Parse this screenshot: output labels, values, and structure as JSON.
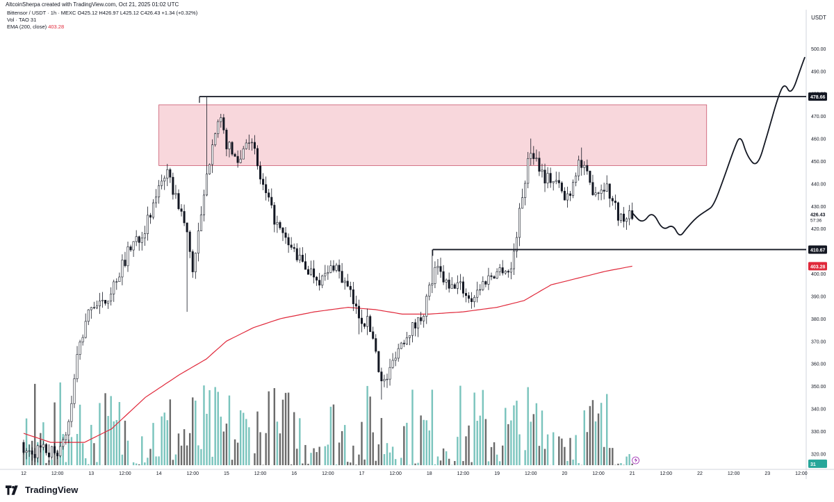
{
  "header": {
    "credit": "AltcoinSherpa created with TradingView.com, Oct 21, 2025 01:02 UTC"
  },
  "legend": {
    "line1": "Bittensor / USDT · 1h · MEXC  O425.12  H426.97  L425.12  C426.43  +1.34 (+0.32%)",
    "line2": "Vol · TAO  31",
    "line3_label": "EMA (200, close)",
    "line3_value": "403.28"
  },
  "axis": {
    "currency": "USDT"
  },
  "brand": {
    "name": "TradingView",
    "icon": "tradingview-logo-icon"
  },
  "colors": {
    "up": "#ffffff",
    "down": "#131722",
    "ema": "#e0283a",
    "vol_up": "#7ac4bd",
    "vol_down": "#6b6b6b",
    "zone_fill": "#f8d7dc",
    "zone_stroke": "#c9556a",
    "badge_dark": "#131722",
    "badge_red": "#e0283a",
    "badge_green": "#26a69a"
  },
  "chart_data": {
    "type": "candlestick",
    "symbol": "Bittensor / USDT",
    "interval": "1h",
    "exchange": "MEXC",
    "ylim": [
      313,
      508
    ],
    "y_ticks": [
      320,
      330,
      340,
      350,
      360,
      370,
      380,
      390,
      400,
      410,
      420,
      430,
      440,
      450,
      460,
      470,
      480,
      490,
      500
    ],
    "x_ticks": [
      {
        "label": "12",
        "day": 0
      },
      {
        "label": "12:00",
        "day": 0.5
      },
      {
        "label": "13",
        "day": 1
      },
      {
        "label": "12:00",
        "day": 1.5
      },
      {
        "label": "14",
        "day": 2
      },
      {
        "label": "12:00",
        "day": 2.5
      },
      {
        "label": "15",
        "day": 3
      },
      {
        "label": "12:00",
        "day": 3.5
      },
      {
        "label": "16",
        "day": 4
      },
      {
        "label": "12:00",
        "day": 4.5
      },
      {
        "label": "17",
        "day": 5
      },
      {
        "label": "12:00",
        "day": 5.5
      },
      {
        "label": "18",
        "day": 6
      },
      {
        "label": "12:00",
        "day": 6.5
      },
      {
        "label": "19",
        "day": 7
      },
      {
        "label": "12:00",
        "day": 7.5
      },
      {
        "label": "20",
        "day": 8
      },
      {
        "label": "12:00",
        "day": 8.5
      },
      {
        "label": "21",
        "day": 9
      },
      {
        "label": "12:00",
        "day": 9.5
      },
      {
        "label": "22",
        "day": 10
      },
      {
        "label": "12:00",
        "day": 10.5
      },
      {
        "label": "23",
        "day": 11
      },
      {
        "label": "12:00",
        "day": 11.5
      }
    ],
    "close_anchors": [
      [
        0.55,
        325
      ],
      [
        0.65,
        330
      ],
      [
        0.72,
        345
      ],
      [
        0.8,
        365
      ],
      [
        0.9,
        375
      ],
      [
        1.0,
        387
      ],
      [
        1.15,
        385
      ],
      [
        1.3,
        393
      ],
      [
        1.45,
        403
      ],
      [
        1.6,
        413
      ],
      [
        1.75,
        418
      ],
      [
        1.9,
        427
      ],
      [
        2.0,
        440
      ],
      [
        2.1,
        445
      ],
      [
        2.2,
        438
      ],
      [
        2.3,
        430
      ],
      [
        2.4,
        420
      ],
      [
        2.5,
        402
      ],
      [
        2.6,
        420
      ],
      [
        2.7,
        440
      ],
      [
        2.8,
        462
      ],
      [
        2.9,
        468
      ],
      [
        3.0,
        458
      ],
      [
        3.1,
        452
      ],
      [
        3.2,
        450
      ],
      [
        3.3,
        462
      ],
      [
        3.4,
        455
      ],
      [
        3.5,
        442
      ],
      [
        3.6,
        433
      ],
      [
        3.7,
        425
      ],
      [
        3.8,
        418
      ],
      [
        3.9,
        413
      ],
      [
        4.0,
        410
      ],
      [
        4.1,
        405
      ],
      [
        4.2,
        402
      ],
      [
        4.3,
        400
      ],
      [
        4.4,
        397
      ],
      [
        4.5,
        400
      ],
      [
        4.6,
        405
      ],
      [
        4.7,
        398
      ],
      [
        4.8,
        393
      ],
      [
        4.9,
        385
      ],
      [
        5.0,
        380
      ],
      [
        5.1,
        378
      ],
      [
        5.2,
        368
      ],
      [
        5.3,
        350
      ],
      [
        5.4,
        355
      ],
      [
        5.5,
        365
      ],
      [
        5.6,
        370
      ],
      [
        5.7,
        375
      ],
      [
        5.8,
        377
      ],
      [
        5.9,
        382
      ],
      [
        6.0,
        393
      ],
      [
        6.1,
        402
      ],
      [
        6.2,
        398
      ],
      [
        6.3,
        392
      ],
      [
        6.4,
        396
      ],
      [
        6.5,
        393
      ],
      [
        6.6,
        388
      ],
      [
        6.7,
        392
      ],
      [
        6.8,
        396
      ],
      [
        6.9,
        399
      ],
      [
        7.0,
        401
      ],
      [
        7.1,
        403
      ],
      [
        7.2,
        400
      ],
      [
        7.3,
        420
      ],
      [
        7.4,
        440
      ],
      [
        7.5,
        455
      ],
      [
        7.6,
        450
      ],
      [
        7.7,
        443
      ],
      [
        7.8,
        442
      ],
      [
        7.9,
        440
      ],
      [
        8.0,
        433
      ],
      [
        8.1,
        438
      ],
      [
        8.2,
        450
      ],
      [
        8.3,
        445
      ],
      [
        8.4,
        438
      ],
      [
        8.5,
        437
      ],
      [
        8.6,
        440
      ],
      [
        8.7,
        433
      ],
      [
        8.8,
        426
      ],
      [
        8.9,
        423
      ],
      [
        9.0,
        426.43
      ]
    ],
    "ema_anchors": [
      [
        0.0,
        329
      ],
      [
        0.4,
        325
      ],
      [
        0.9,
        325
      ],
      [
        1.3,
        331
      ],
      [
        1.8,
        345
      ],
      [
        2.3,
        355
      ],
      [
        2.7,
        362
      ],
      [
        3.0,
        370
      ],
      [
        3.4,
        376
      ],
      [
        3.8,
        380
      ],
      [
        4.3,
        383
      ],
      [
        4.8,
        385
      ],
      [
        5.2,
        384
      ],
      [
        5.6,
        382
      ],
      [
        6.0,
        382
      ],
      [
        6.5,
        383
      ],
      [
        7.0,
        385
      ],
      [
        7.4,
        388
      ],
      [
        7.8,
        395
      ],
      [
        8.2,
        398
      ],
      [
        8.6,
        401
      ],
      [
        9.0,
        403.28
      ]
    ],
    "volume_max": 100,
    "resistance_zone": {
      "x1": 2.0,
      "x2": 10.1,
      "y_low": 448,
      "y_high": 475
    },
    "levels": [
      {
        "price": 478.66,
        "label": "478.66",
        "x_start": 2.6
      },
      {
        "price": 410.67,
        "label": "410.67",
        "x_start": 6.05
      }
    ],
    "projection_path": [
      [
        9.0,
        427
      ],
      [
        9.15,
        422
      ],
      [
        9.3,
        428
      ],
      [
        9.45,
        419
      ],
      [
        9.6,
        422
      ],
      [
        9.7,
        416
      ],
      [
        9.8,
        420
      ],
      [
        9.95,
        425
      ],
      [
        10.1,
        428
      ],
      [
        10.2,
        430
      ],
      [
        10.35,
        442
      ],
      [
        10.5,
        455
      ],
      [
        10.6,
        462
      ],
      [
        10.7,
        452
      ],
      [
        10.85,
        447
      ],
      [
        11.0,
        462
      ],
      [
        11.15,
        478
      ],
      [
        11.25,
        485
      ],
      [
        11.35,
        479
      ],
      [
        11.5,
        492
      ],
      [
        11.55,
        496
      ]
    ],
    "badges": [
      {
        "label": "478.66",
        "price": 478.66,
        "kind": "dark"
      },
      {
        "label": "426.43",
        "price": 426.43,
        "kind": "plain",
        "sub": "57:36"
      },
      {
        "label": "410.67",
        "price": 410.67,
        "kind": "dark"
      },
      {
        "label": "403.28",
        "price": 403.28,
        "kind": "red"
      },
      {
        "label": "31",
        "price": 315.5,
        "kind": "green"
      }
    ]
  }
}
